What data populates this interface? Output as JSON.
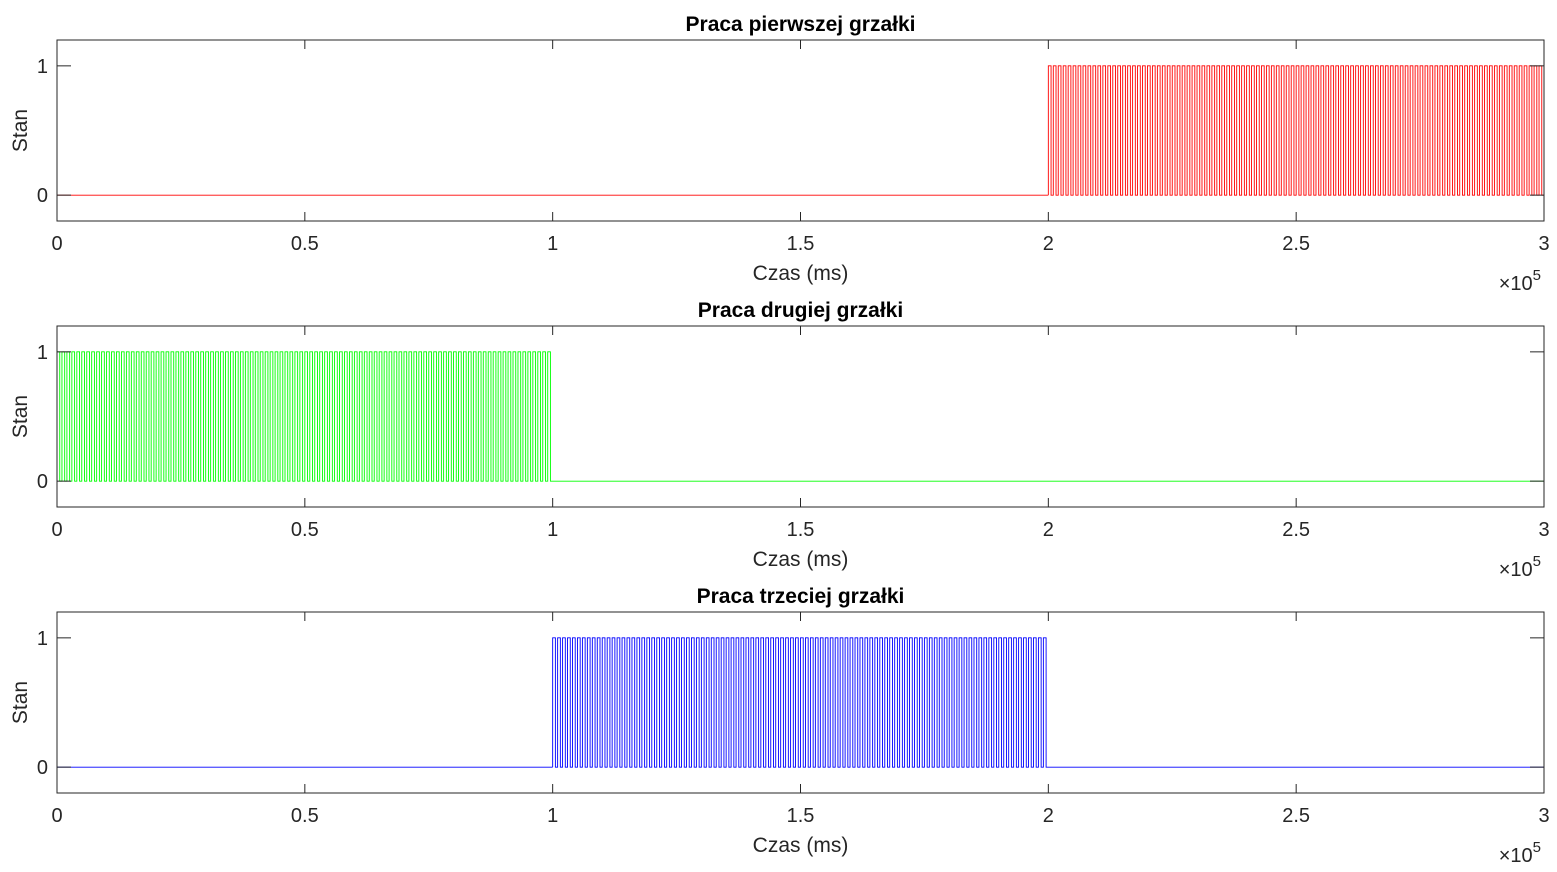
{
  "chart_data": [
    {
      "type": "line",
      "title": "Praca pierwszej grzałki",
      "xlabel": "Czas (ms)",
      "ylabel": "Stan",
      "xlim": [
        0,
        300000
      ],
      "ylim": [
        -0.2,
        1.2
      ],
      "x_ticks": [
        0,
        50000,
        100000,
        150000,
        200000,
        250000,
        300000
      ],
      "x_tick_labels": [
        "0",
        "0.5",
        "1",
        "1.5",
        "2",
        "2.5",
        "3"
      ],
      "y_ticks": [
        0,
        1
      ],
      "y_tick_labels": [
        "0",
        "1"
      ],
      "x_exponent": {
        "base": "×10",
        "power": "5"
      },
      "grid": false,
      "color": "#ff0000",
      "series": [
        {
          "values_description": "square wave 0/1",
          "x": [
            0,
            200000,
            200000,
            300000
          ],
          "y": [
            0,
            0,
            1,
            1
          ],
          "active_interval": [
            200000,
            300000
          ],
          "pulse_period": 1000
        }
      ]
    },
    {
      "type": "line",
      "title": "Praca drugiej grzałki",
      "xlabel": "Czas (ms)",
      "ylabel": "Stan",
      "xlim": [
        0,
        300000
      ],
      "ylim": [
        -0.2,
        1.2
      ],
      "x_ticks": [
        0,
        50000,
        100000,
        150000,
        200000,
        250000,
        300000
      ],
      "x_tick_labels": [
        "0",
        "0.5",
        "1",
        "1.5",
        "2",
        "2.5",
        "3"
      ],
      "y_ticks": [
        0,
        1
      ],
      "y_tick_labels": [
        "0",
        "1"
      ],
      "x_exponent": {
        "base": "×10",
        "power": "5"
      },
      "grid": false,
      "color": "#00ff00",
      "series": [
        {
          "values_description": "square wave 0/1",
          "x": [
            0,
            100000,
            100000,
            300000
          ],
          "y": [
            1,
            1,
            0,
            0
          ],
          "active_interval": [
            0,
            100000
          ],
          "pulse_period": 1000
        }
      ]
    },
    {
      "type": "line",
      "title": "Praca trzeciej grzałki",
      "xlabel": "Czas (ms)",
      "ylabel": "Stan",
      "xlim": [
        0,
        300000
      ],
      "ylim": [
        -0.2,
        1.2
      ],
      "x_ticks": [
        0,
        50000,
        100000,
        150000,
        200000,
        250000,
        300000
      ],
      "x_tick_labels": [
        "0",
        "0.5",
        "1",
        "1.5",
        "2",
        "2.5",
        "3"
      ],
      "y_ticks": [
        0,
        1
      ],
      "y_tick_labels": [
        "0",
        "1"
      ],
      "x_exponent": {
        "base": "×10",
        "power": "5"
      },
      "grid": false,
      "color": "#0000ff",
      "series": [
        {
          "values_description": "square wave 0/1",
          "x": [
            0,
            100000,
            100000,
            200000,
            200000,
            300000
          ],
          "y": [
            0,
            0,
            1,
            1,
            0,
            0
          ],
          "active_interval": [
            100000,
            200000
          ],
          "pulse_period": 1000
        }
      ]
    }
  ]
}
